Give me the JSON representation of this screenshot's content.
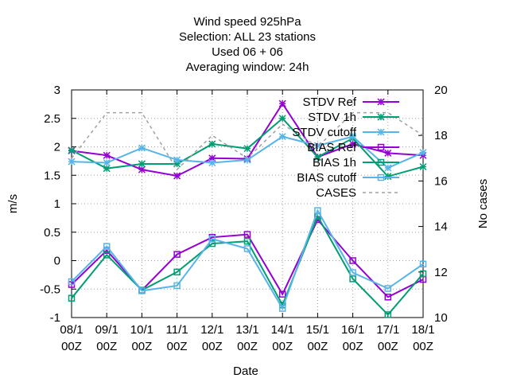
{
  "chart_data": {
    "type": "line",
    "title_lines": [
      "Wind speed 925hPa",
      "Selection: ALL      23 stations",
      "Used  06 + 06",
      "Averaging window: 24h"
    ],
    "xlabel": "Date",
    "ylabel": "m/s",
    "y2label": "No cases",
    "categories": [
      "08/1\n00Z",
      "09/1\n00Z",
      "10/1\n00Z",
      "11/1\n00Z",
      "12/1\n00Z",
      "13/1\n00Z",
      "14/1\n00Z",
      "15/1\n00Z",
      "16/1\n00Z",
      "17/1\n00Z",
      "18/1\n00Z"
    ],
    "ylim": [
      -1,
      3
    ],
    "yticks": [
      -1,
      -0.5,
      0,
      0.5,
      1,
      1.5,
      2,
      2.5,
      3
    ],
    "y2lim": [
      10,
      20
    ],
    "y2ticks": [
      10,
      12,
      14,
      16,
      18,
      20
    ],
    "grid": true,
    "legend_position": "top-right",
    "series": [
      {
        "name": "STDV Ref",
        "color": "#9400d3",
        "marker": "x",
        "axis": "y",
        "values": [
          1.93,
          1.85,
          1.6,
          1.49,
          1.8,
          1.79,
          2.76,
          1.82,
          2.05,
          1.89,
          1.85
        ]
      },
      {
        "name": "STDV 1h",
        "color": "#009e73",
        "marker": "x",
        "axis": "y",
        "values": [
          1.94,
          1.62,
          1.7,
          1.7,
          2.05,
          1.97,
          2.5,
          1.82,
          2.15,
          1.48,
          1.65
        ]
      },
      {
        "name": "STDV cutoff",
        "color": "#56b4e9",
        "marker": "x",
        "axis": "y",
        "values": [
          1.74,
          1.72,
          1.98,
          1.77,
          1.72,
          1.77,
          2.18,
          2.02,
          2.18,
          1.63,
          1.9
        ]
      },
      {
        "name": "BIAS Ref",
        "color": "#9400d3",
        "marker": "square",
        "axis": "y",
        "values": [
          -0.42,
          0.18,
          -0.52,
          0.11,
          0.41,
          0.46,
          -0.59,
          0.72,
          0.0,
          -0.64,
          -0.33
        ]
      },
      {
        "name": "BIAS 1h",
        "color": "#009e73",
        "marker": "square",
        "axis": "y",
        "values": [
          -0.66,
          0.1,
          -0.52,
          -0.2,
          0.3,
          0.34,
          -0.78,
          0.78,
          -0.32,
          -0.95,
          -0.23
        ]
      },
      {
        "name": "BIAS cutoff",
        "color": "#56b4e9",
        "marker": "square",
        "axis": "y",
        "values": [
          -0.37,
          0.25,
          -0.53,
          -0.44,
          0.38,
          0.21,
          -0.84,
          0.88,
          -0.21,
          -0.49,
          -0.06
        ]
      },
      {
        "name": "CASES",
        "color": "#a0a0a0",
        "marker": "none",
        "dash": true,
        "axis": "y2",
        "values": [
          17,
          19,
          19,
          16.5,
          18,
          17,
          18.5,
          17.5,
          19,
          19,
          18
        ]
      }
    ]
  }
}
